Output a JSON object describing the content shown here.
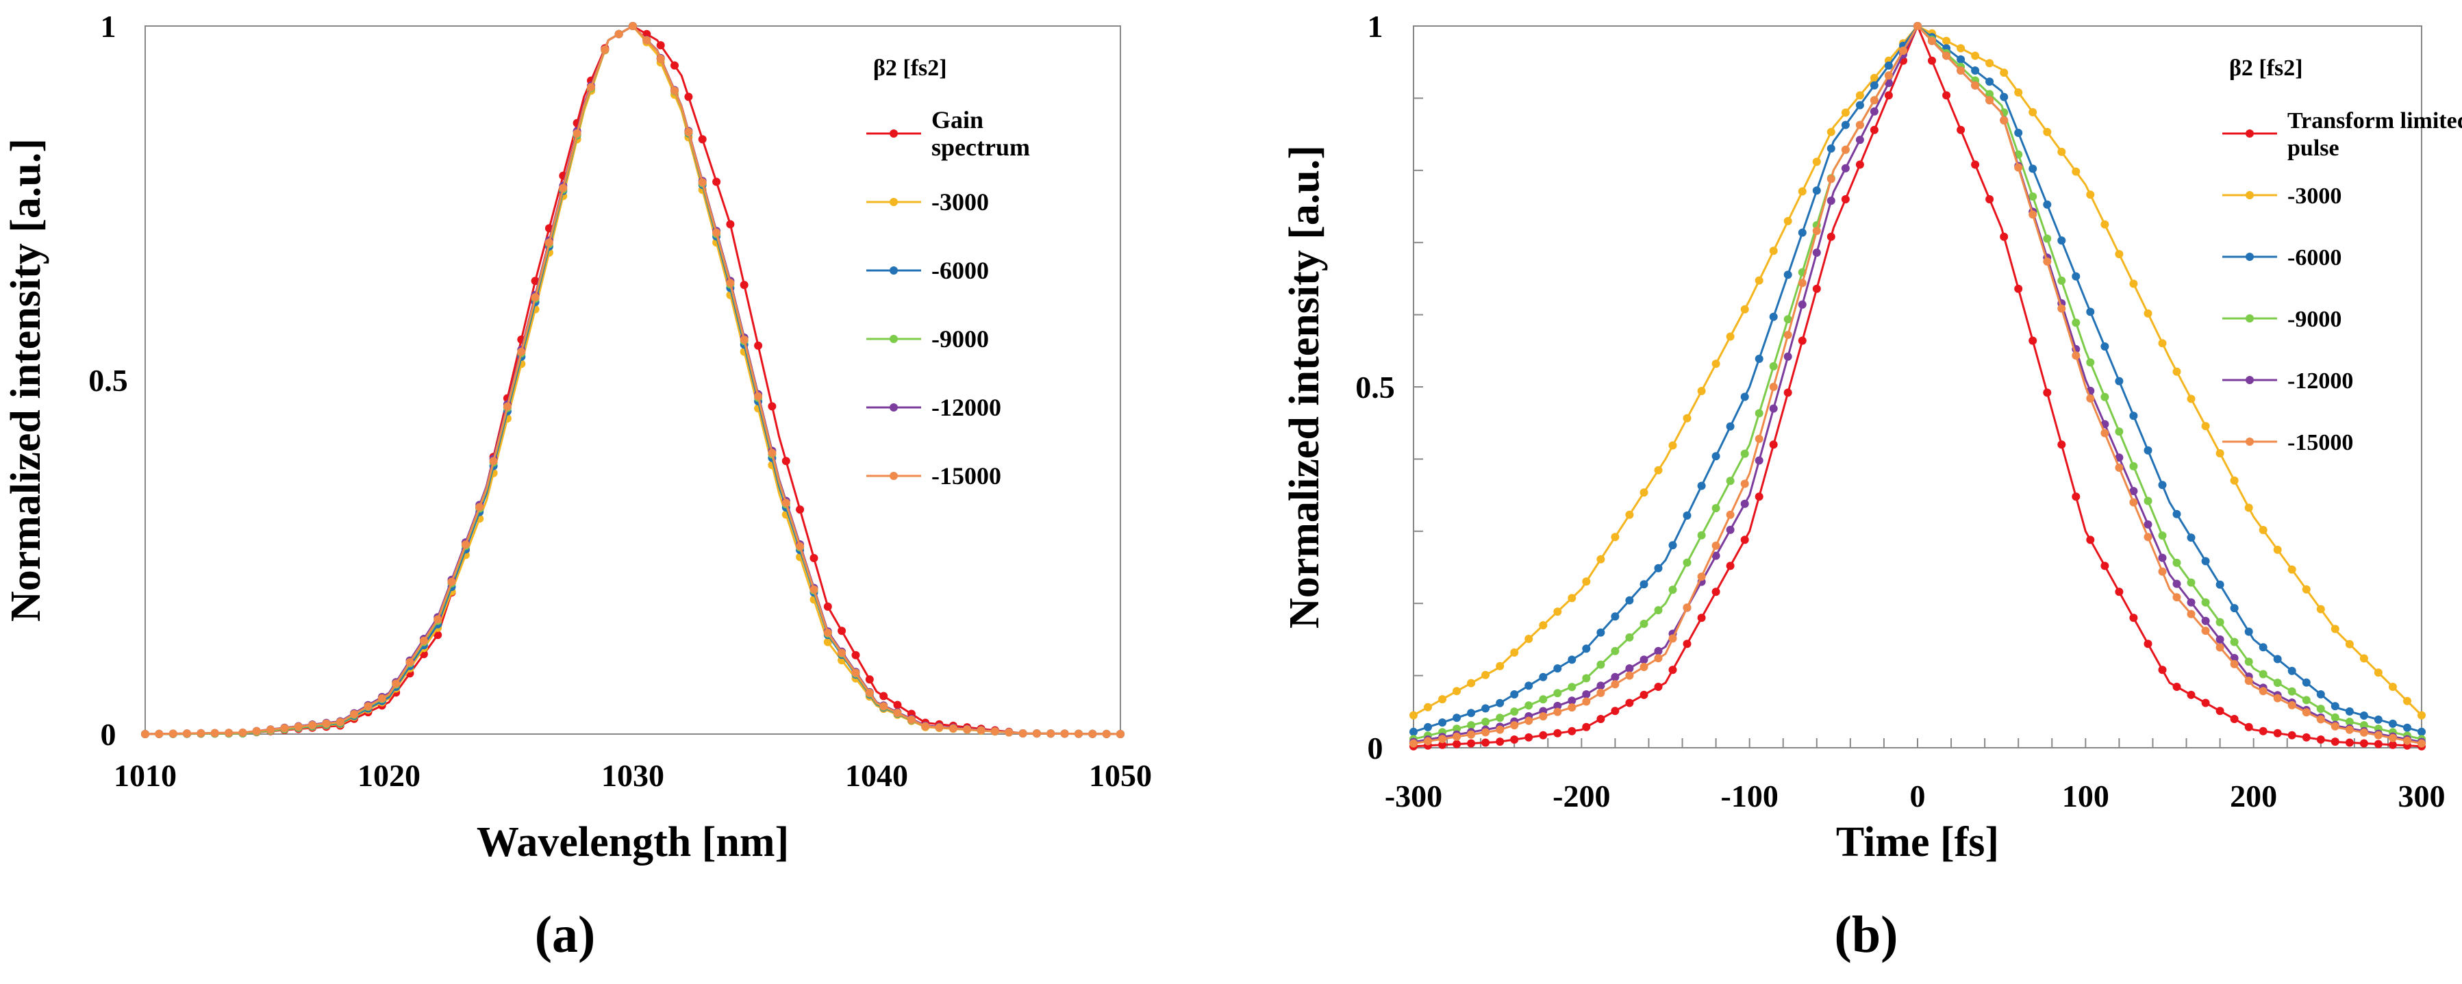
{
  "chart_data": [
    {
      "panel_label": "(a)",
      "type": "line",
      "xlabel": "Wavelength [nm]",
      "ylabel": "Normalized intensity [a.u.]",
      "xlim": [
        1010,
        1050
      ],
      "ylim": [
        0,
        1
      ],
      "xticks": [
        1010,
        1020,
        1030,
        1040,
        1050
      ],
      "yticks": [
        0,
        0.5,
        1
      ],
      "ytick_labels": [
        "0",
        "0.5",
        "1"
      ],
      "grid": false,
      "legend_title": "β2 [fs2]",
      "legend_position": "top-right",
      "x": [
        1010,
        1014,
        1018,
        1020,
        1022,
        1024,
        1026,
        1028,
        1029,
        1030,
        1031,
        1032,
        1034,
        1036,
        1038,
        1040,
        1042,
        1046,
        1050
      ],
      "series": [
        {
          "name": "Gain spectrum",
          "color": "#e8141c",
          "values": [
            0.0,
            0.001,
            0.012,
            0.045,
            0.14,
            0.35,
            0.64,
            0.9,
            0.98,
            1.0,
            0.98,
            0.93,
            0.72,
            0.42,
            0.18,
            0.06,
            0.016,
            0.001,
            0.0
          ]
        },
        {
          "name": "-3000",
          "color": "#f5b51f",
          "values": [
            0.0,
            0.001,
            0.014,
            0.05,
            0.15,
            0.33,
            0.6,
            0.88,
            0.98,
            1.0,
            0.96,
            0.88,
            0.62,
            0.34,
            0.13,
            0.04,
            0.01,
            0.001,
            0.0
          ]
        },
        {
          "name": "-6000",
          "color": "#2272b5",
          "values": [
            0.0,
            0.001,
            0.015,
            0.052,
            0.155,
            0.34,
            0.61,
            0.885,
            0.98,
            1.0,
            0.965,
            0.885,
            0.63,
            0.35,
            0.14,
            0.042,
            0.011,
            0.001,
            0.0
          ]
        },
        {
          "name": "-9000",
          "color": "#7ccc4a",
          "values": [
            0.0,
            0.001,
            0.016,
            0.055,
            0.16,
            0.345,
            0.615,
            0.885,
            0.98,
            1.0,
            0.965,
            0.885,
            0.635,
            0.355,
            0.142,
            0.043,
            0.011,
            0.001,
            0.0
          ]
        },
        {
          "name": "-12000",
          "color": "#7b3c9e",
          "values": [
            0.0,
            0.002,
            0.018,
            0.058,
            0.165,
            0.35,
            0.62,
            0.89,
            0.98,
            1.0,
            0.966,
            0.887,
            0.64,
            0.36,
            0.145,
            0.045,
            0.012,
            0.001,
            0.0
          ]
        },
        {
          "name": "-15000",
          "color": "#f08a4b",
          "values": [
            0.0,
            0.002,
            0.017,
            0.056,
            0.162,
            0.347,
            0.617,
            0.887,
            0.98,
            1.0,
            0.965,
            0.886,
            0.637,
            0.357,
            0.143,
            0.044,
            0.011,
            0.001,
            0.0
          ]
        }
      ]
    },
    {
      "panel_label": "(b)",
      "type": "line",
      "xlabel": "Time [fs]",
      "ylabel": "Normalized intensity [a.u.]",
      "xlim": [
        -300,
        300
      ],
      "ylim": [
        0,
        1
      ],
      "xticks": [
        -300,
        -200,
        -100,
        0,
        100,
        200,
        300
      ],
      "yticks": [
        0,
        0.5,
        1
      ],
      "ytick_labels": [
        "0",
        "0.5",
        "1"
      ],
      "grid": false,
      "legend_title": "β2 [fs2]",
      "legend_position": "top-right",
      "x": [
        -300,
        -250,
        -200,
        -150,
        -100,
        -50,
        0,
        50,
        100,
        150,
        200,
        250,
        300
      ],
      "series": [
        {
          "name": "Transform limited pulse",
          "color": "#e8141c",
          "values": [
            0.002,
            0.008,
            0.025,
            0.09,
            0.3,
            0.72,
            1.0,
            0.72,
            0.3,
            0.09,
            0.025,
            0.008,
            0.002
          ]
        },
        {
          "name": "-3000",
          "color": "#f5b51f",
          "values": [
            0.045,
            0.11,
            0.22,
            0.4,
            0.62,
            0.86,
            1.0,
            0.94,
            0.78,
            0.54,
            0.32,
            0.16,
            0.045
          ]
        },
        {
          "name": "-6000",
          "color": "#2272b5",
          "values": [
            0.022,
            0.06,
            0.13,
            0.26,
            0.5,
            0.84,
            1.0,
            0.91,
            0.62,
            0.34,
            0.15,
            0.055,
            0.022
          ]
        },
        {
          "name": "-9000",
          "color": "#7ccc4a",
          "values": [
            0.012,
            0.04,
            0.09,
            0.2,
            0.42,
            0.8,
            1.0,
            0.89,
            0.55,
            0.27,
            0.11,
            0.04,
            0.012
          ]
        },
        {
          "name": "-12000",
          "color": "#7b3c9e",
          "values": [
            0.008,
            0.028,
            0.07,
            0.14,
            0.35,
            0.77,
            1.0,
            0.88,
            0.51,
            0.24,
            0.09,
            0.03,
            0.008
          ]
        },
        {
          "name": "-15000",
          "color": "#f08a4b",
          "values": [
            0.006,
            0.024,
            0.06,
            0.13,
            0.38,
            0.8,
            1.0,
            0.88,
            0.5,
            0.22,
            0.085,
            0.028,
            0.006
          ]
        }
      ]
    }
  ]
}
